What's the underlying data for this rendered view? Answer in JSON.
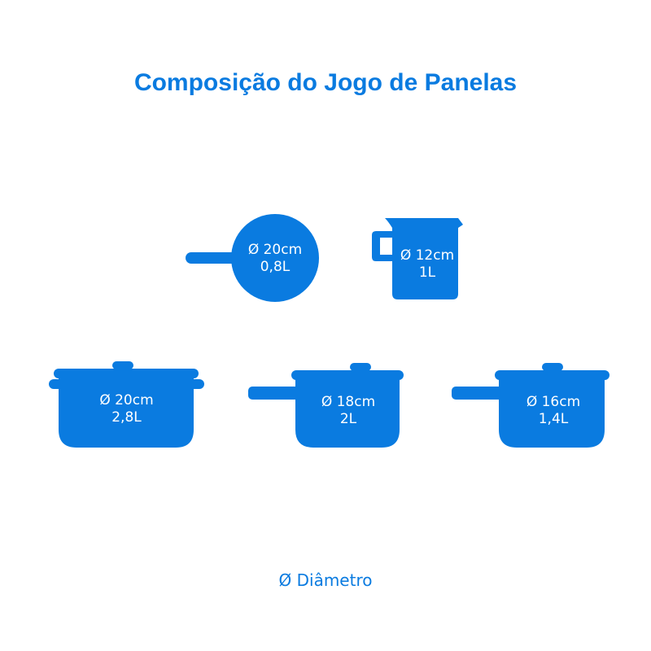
{
  "title": "Composição do Jogo de Panelas",
  "colors": {
    "accent": "#0a7be0",
    "label_text": "#ffffff"
  },
  "items": [
    {
      "type": "frying-pan",
      "diameter": "Ø 20cm",
      "capacity": "0,8L"
    },
    {
      "type": "milk-jug",
      "diameter": "Ø 12cm",
      "capacity": "1L"
    },
    {
      "type": "casserole",
      "diameter": "Ø 20cm",
      "capacity": "2,8L"
    },
    {
      "type": "saucepan",
      "diameter": "Ø 18cm",
      "capacity": "2L"
    },
    {
      "type": "saucepan",
      "diameter": "Ø 16cm",
      "capacity": "1,4L"
    }
  ],
  "legend": "Ø Diâmetro"
}
